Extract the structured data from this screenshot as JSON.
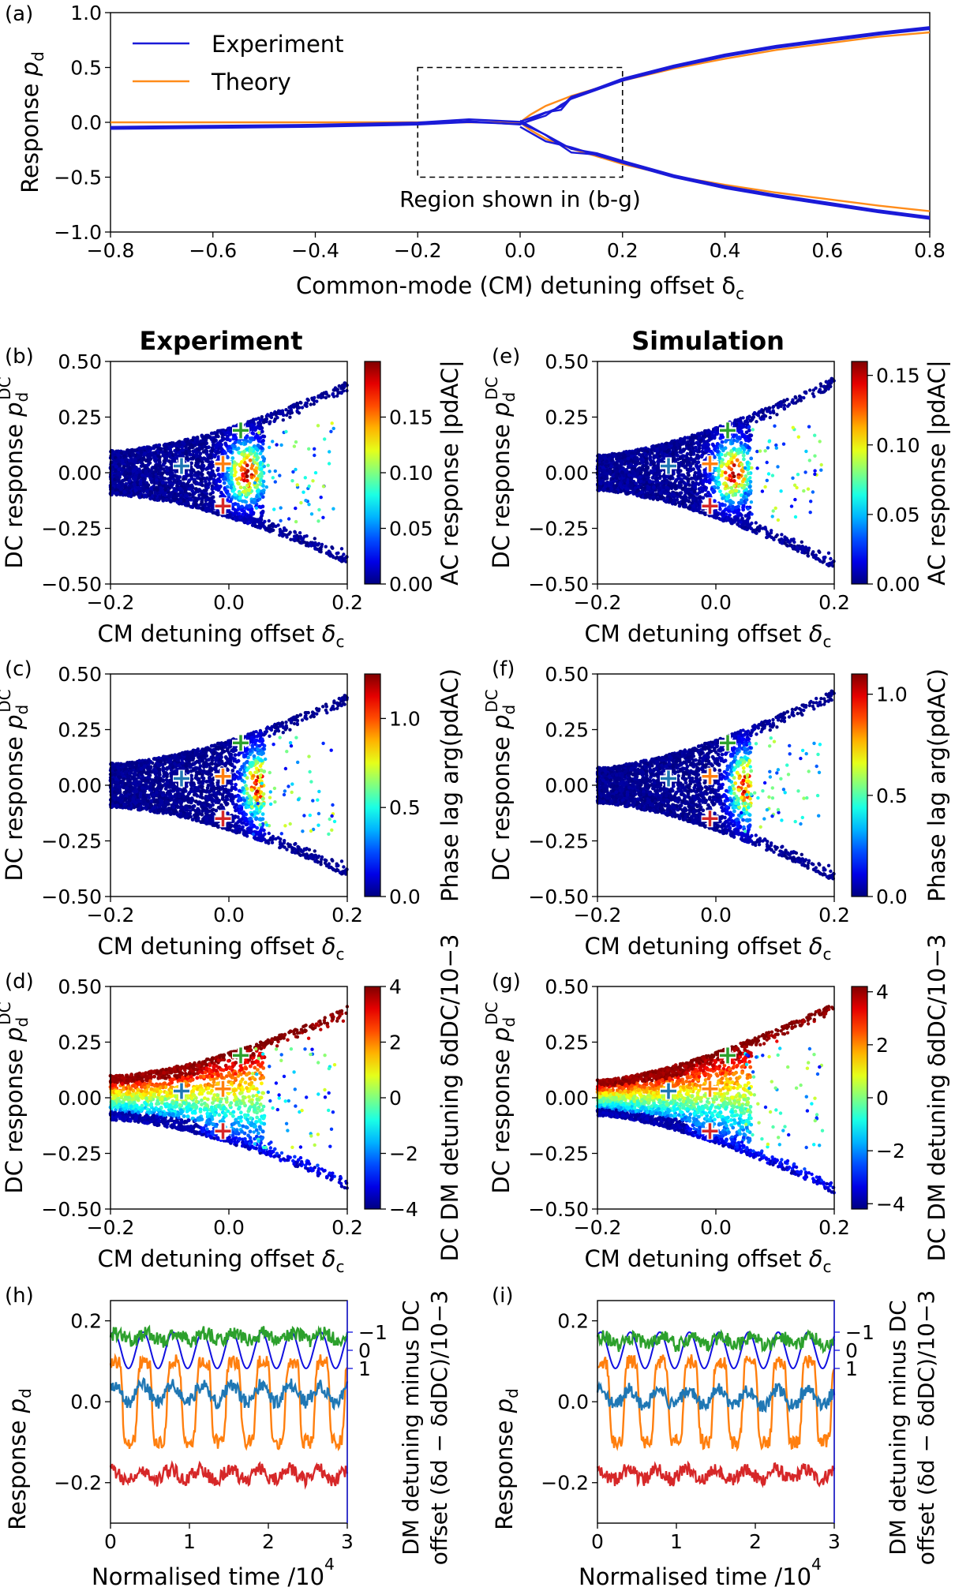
{
  "panel_labels": {
    "a": "(a)",
    "b": "(b)",
    "c": "(c)",
    "d": "(d)",
    "e": "(e)",
    "f": "(f)",
    "g": "(g)",
    "h": "(h)",
    "i": "(i)"
  },
  "column_titles": {
    "left": "Experiment",
    "right": "Simulation"
  },
  "colors": {
    "experiment": "#1a1ad8",
    "theory": "#ff8c1a",
    "green": "#2ca02c",
    "orange": "#ff7f0e",
    "blue": "#1f77b4",
    "red": "#d62728",
    "drive": "#1010e0"
  },
  "icons": {
    "marker": "plus-marker-icon"
  },
  "chart_data": [
    {
      "id": "a",
      "type": "line",
      "xlabel": "Common-mode (CM) detuning offset δc",
      "ylabel": "Response pd",
      "xlim": [
        -0.8,
        0.8
      ],
      "ylim": [
        -1.0,
        1.0
      ],
      "xticks": [
        "−0.8",
        "−0.6",
        "−0.4",
        "−0.2",
        "0.0",
        "0.2",
        "0.4",
        "0.6",
        "0.8"
      ],
      "yticks": [
        "−1.0",
        "−0.5",
        "0.0",
        "0.5",
        "1.0"
      ],
      "legend": {
        "position": "top-left",
        "entries": [
          "Experiment",
          "Theory"
        ]
      },
      "annotation": {
        "text": "Region shown in (b-g)",
        "box_x": [
          -0.2,
          0.2
        ],
        "box_y": [
          -0.5,
          0.5
        ]
      },
      "series": [
        {
          "name": "Theory",
          "branch": "upper",
          "x": [
            -0.8,
            -0.4,
            -0.2,
            0.0,
            0.02,
            0.05,
            0.1,
            0.2,
            0.3,
            0.4,
            0.5,
            0.6,
            0.7,
            0.8
          ],
          "y": [
            0.0,
            0.0,
            0.0,
            0.0,
            0.07,
            0.15,
            0.24,
            0.38,
            0.49,
            0.58,
            0.66,
            0.72,
            0.78,
            0.82
          ]
        },
        {
          "name": "Theory",
          "branch": "lower",
          "x": [
            0.0,
            0.02,
            0.05,
            0.1,
            0.2,
            0.3,
            0.4,
            0.5,
            0.6,
            0.7,
            0.8
          ],
          "y": [
            0.0,
            -0.07,
            -0.15,
            -0.24,
            -0.38,
            -0.49,
            -0.57,
            -0.64,
            -0.7,
            -0.76,
            -0.81
          ]
        },
        {
          "name": "Experiment",
          "branch": "upper",
          "x": [
            -0.8,
            -0.6,
            -0.4,
            -0.2,
            -0.1,
            0.0,
            0.05,
            0.08,
            0.1,
            0.2,
            0.3,
            0.4,
            0.5,
            0.6,
            0.7,
            0.8
          ],
          "y": [
            -0.06,
            -0.05,
            -0.04,
            -0.02,
            -0.01,
            0.0,
            0.05,
            0.12,
            0.2,
            0.38,
            0.5,
            0.6,
            0.68,
            0.74,
            0.8,
            0.85
          ]
        },
        {
          "name": "Experiment",
          "branch": "lower",
          "x": [
            0.0,
            0.05,
            0.1,
            0.15,
            0.2,
            0.3,
            0.4,
            0.5,
            0.6,
            0.7,
            0.8
          ],
          "y": [
            -0.02,
            -0.15,
            -0.25,
            -0.3,
            -0.37,
            -0.5,
            -0.6,
            -0.68,
            -0.75,
            -0.82,
            -0.88
          ]
        }
      ]
    },
    {
      "id": "b",
      "type": "scatter",
      "xlabel": "CM detuning offset δc",
      "ylabel": "DC response pdDC",
      "cbar_label": "AC response |pdAC|",
      "xlim": [
        -0.2,
        0.2
      ],
      "ylim": [
        -0.5,
        0.5
      ],
      "clim": [
        0.0,
        0.2
      ],
      "xticks": [
        "−0.2",
        "0.0",
        "0.2"
      ],
      "yticks": [
        "−0.50",
        "−0.25",
        "0.00",
        "0.25",
        "0.50"
      ],
      "cticks": [
        "0.00",
        "0.05",
        "0.10",
        "0.15"
      ],
      "markers": [
        {
          "x": -0.08,
          "y": 0.03,
          "color": "blue"
        },
        {
          "x": -0.01,
          "y": 0.04,
          "color": "orange"
        },
        {
          "x": 0.02,
          "y": 0.19,
          "color": "green"
        },
        {
          "x": -0.01,
          "y": -0.15,
          "color": "red"
        }
      ]
    },
    {
      "id": "c",
      "type": "scatter",
      "xlabel": "CM detuning offset δc",
      "ylabel": "DC response pdDC",
      "cbar_label": "Phase lag arg(pdAC)",
      "xlim": [
        -0.2,
        0.2
      ],
      "ylim": [
        -0.5,
        0.5
      ],
      "clim": [
        0.0,
        1.25
      ],
      "xticks": [
        "−0.2",
        "0.0",
        "0.2"
      ],
      "yticks": [
        "−0.50",
        "−0.25",
        "0.00",
        "0.25",
        "0.50"
      ],
      "cticks": [
        "0.0",
        "0.5",
        "1.0"
      ]
    },
    {
      "id": "d",
      "type": "scatter",
      "xlabel": "CM detuning offset δc",
      "ylabel": "DC response pdDC",
      "cbar_label": "DC DM detuning δdDC/10−3",
      "xlim": [
        -0.2,
        0.2
      ],
      "ylim": [
        -0.5,
        0.5
      ],
      "clim": [
        -4,
        4
      ],
      "xticks": [
        "−0.2",
        "0.0",
        "0.2"
      ],
      "yticks": [
        "−0.50",
        "−0.25",
        "0.00",
        "0.25",
        "0.50"
      ],
      "cticks": [
        "−4",
        "−2",
        "0",
        "2",
        "4"
      ]
    },
    {
      "id": "e",
      "type": "scatter",
      "xlabel": "CM detuning offset δc",
      "ylabel": "DC response pdDC",
      "cbar_label": "AC response |pdAC|",
      "xlim": [
        -0.2,
        0.2
      ],
      "ylim": [
        -0.5,
        0.5
      ],
      "clim": [
        0.0,
        0.16
      ],
      "xticks": [
        "−0.2",
        "0.0",
        "0.2"
      ],
      "yticks": [
        "−0.50",
        "−0.25",
        "0.00",
        "0.25",
        "0.50"
      ],
      "cticks": [
        "0.00",
        "0.05",
        "0.10",
        "0.15"
      ]
    },
    {
      "id": "f",
      "type": "scatter",
      "xlabel": "CM detuning offset δc",
      "ylabel": "DC response pdDC",
      "cbar_label": "Phase lag arg(pdAC)",
      "xlim": [
        -0.2,
        0.2
      ],
      "ylim": [
        -0.5,
        0.5
      ],
      "clim": [
        0.0,
        1.1
      ],
      "xticks": [
        "−0.2",
        "0.0",
        "0.2"
      ],
      "yticks": [
        "−0.50",
        "−0.25",
        "0.00",
        "0.25",
        "0.50"
      ],
      "cticks": [
        "0.0",
        "0.5",
        "1.0"
      ]
    },
    {
      "id": "g",
      "type": "scatter",
      "xlabel": "CM detuning offset δc",
      "ylabel": "DC response pdDC",
      "cbar_label": "DC DM detuning δdDC/10−3",
      "xlim": [
        -0.2,
        0.2
      ],
      "ylim": [
        -0.5,
        0.5
      ],
      "clim": [
        -4.2,
        4.2
      ],
      "xticks": [
        "−0.2",
        "0.0",
        "0.2"
      ],
      "yticks": [
        "−0.50",
        "−0.25",
        "0.00",
        "0.25",
        "0.50"
      ],
      "cticks": [
        "−4",
        "−2",
        "0",
        "2",
        "4"
      ]
    },
    {
      "id": "h",
      "type": "line",
      "xlabel": "Normalised time /104",
      "ylabel": "Response pd",
      "ylabel_right": "DM detuning minus DC offset (δd − δdDC)/10−3",
      "xlim": [
        0,
        3
      ],
      "ylim": [
        -0.3,
        0.25
      ],
      "xticks": [
        "0",
        "1",
        "2",
        "3"
      ],
      "yticks": [
        "−0.2",
        "0.0",
        "0.2"
      ],
      "yticks_right": [
        "−1",
        "0",
        "1"
      ],
      "drive_periods": 8,
      "series": [
        {
          "color": "green",
          "mean": 0.16,
          "amp": 0.02
        },
        {
          "color": "orange",
          "mean": 0.0,
          "amp": 0.1
        },
        {
          "color": "blue",
          "mean": 0.02,
          "amp": 0.04
        },
        {
          "color": "red",
          "mean": -0.18,
          "amp": 0.025
        }
      ]
    },
    {
      "id": "i",
      "type": "line",
      "xlabel": "Normalised time /104",
      "ylabel": "Response pd",
      "ylabel_right": "DM detuning minus DC offset (δd − δdDC)/10−3",
      "xlim": [
        0,
        3
      ],
      "ylim": [
        -0.3,
        0.25
      ],
      "xticks": [
        "0",
        "1",
        "2",
        "3"
      ],
      "yticks": [
        "−0.2",
        "0.0",
        "0.2"
      ],
      "yticks_right": [
        "−1",
        "0",
        "1"
      ],
      "drive_periods": 8,
      "series": [
        {
          "color": "green",
          "mean": 0.15,
          "amp": 0.02
        },
        {
          "color": "orange",
          "mean": 0.0,
          "amp": 0.1
        },
        {
          "color": "blue",
          "mean": 0.01,
          "amp": 0.04
        },
        {
          "color": "red",
          "mean": -0.18,
          "amp": 0.025
        }
      ]
    }
  ]
}
